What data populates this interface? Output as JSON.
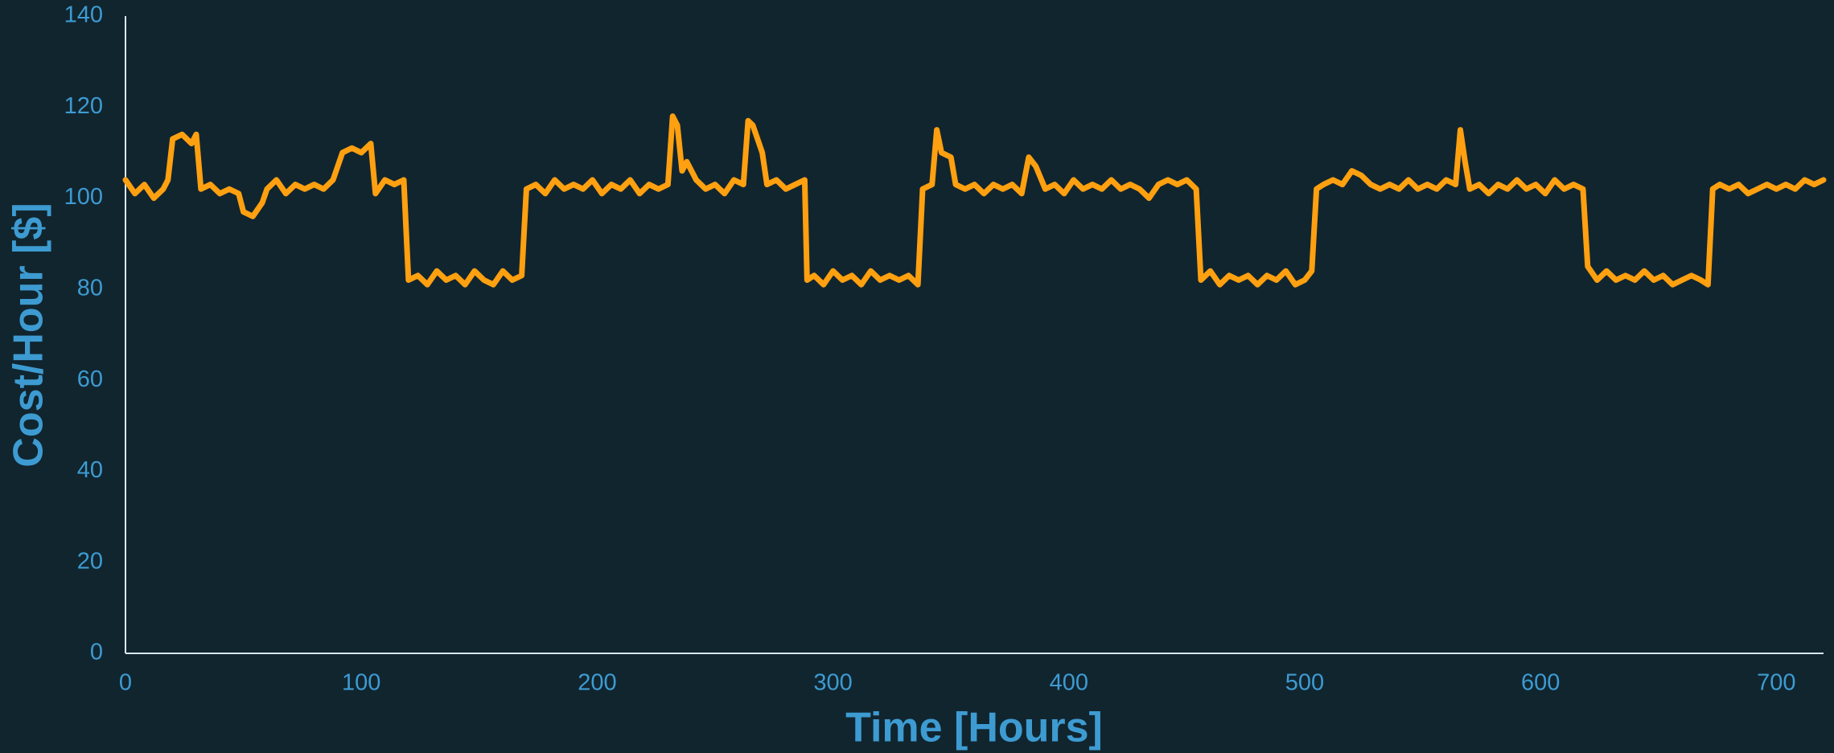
{
  "chart_data": {
    "type": "line",
    "xlabel": "Time [Hours]",
    "ylabel": "Cost/Hour [$]",
    "color": "#ffa010",
    "xlim": [
      0,
      720
    ],
    "xticks": [
      0,
      100,
      200,
      300,
      400,
      500,
      600,
      700
    ],
    "ylim": [
      0,
      140
    ],
    "yticks": [
      0,
      20,
      40,
      60,
      80,
      100,
      120,
      140
    ],
    "grid": false,
    "x": [
      0,
      4,
      8,
      12,
      16,
      18,
      20,
      24,
      28,
      30,
      32,
      36,
      40,
      44,
      48,
      50,
      54,
      58,
      60,
      64,
      68,
      72,
      76,
      80,
      84,
      88,
      92,
      96,
      100,
      104,
      106,
      110,
      114,
      118,
      120,
      124,
      128,
      132,
      136,
      140,
      144,
      148,
      152,
      156,
      160,
      164,
      168,
      170,
      174,
      178,
      182,
      186,
      190,
      194,
      198,
      202,
      206,
      210,
      214,
      218,
      222,
      226,
      230,
      232,
      234,
      236,
      238,
      242,
      246,
      250,
      254,
      258,
      262,
      264,
      266,
      270,
      272,
      276,
      280,
      284,
      288,
      289,
      292,
      296,
      300,
      304,
      308,
      312,
      316,
      320,
      324,
      328,
      332,
      336,
      338,
      342,
      344,
      346,
      350,
      352,
      356,
      360,
      364,
      368,
      372,
      376,
      380,
      383,
      386,
      390,
      394,
      398,
      402,
      406,
      410,
      414,
      418,
      422,
      426,
      430,
      434,
      438,
      442,
      446,
      450,
      454,
      456,
      460,
      464,
      468,
      472,
      476,
      480,
      484,
      488,
      492,
      496,
      500,
      503,
      505,
      508,
      512,
      516,
      520,
      524,
      528,
      532,
      536,
      540,
      544,
      548,
      552,
      556,
      560,
      564,
      566,
      568,
      570,
      574,
      578,
      582,
      586,
      590,
      594,
      598,
      602,
      606,
      610,
      614,
      618,
      620,
      624,
      628,
      632,
      636,
      640,
      644,
      648,
      652,
      656,
      660,
      664,
      668,
      671,
      673,
      676,
      680,
      684,
      688,
      692,
      696,
      700,
      704,
      708,
      712,
      716,
      720
    ],
    "values": [
      104,
      101,
      103,
      100,
      102,
      104,
      113,
      114,
      112,
      114,
      102,
      103,
      101,
      102,
      101,
      97,
      96,
      99,
      102,
      104,
      101,
      103,
      102,
      103,
      102,
      104,
      110,
      111,
      110,
      112,
      101,
      104,
      103,
      104,
      82,
      83,
      81,
      84,
      82,
      83,
      81,
      84,
      82,
      81,
      84,
      82,
      83,
      102,
      103,
      101,
      104,
      102,
      103,
      102,
      104,
      101,
      103,
      102,
      104,
      101,
      103,
      102,
      103,
      118,
      116,
      106,
      108,
      104,
      102,
      103,
      101,
      104,
      103,
      117,
      116,
      110,
      103,
      104,
      102,
      103,
      104,
      82,
      83,
      81,
      84,
      82,
      83,
      81,
      84,
      82,
      83,
      82,
      83,
      81,
      102,
      103,
      115,
      110,
      109,
      103,
      102,
      103,
      101,
      103,
      102,
      103,
      101,
      109,
      107,
      102,
      103,
      101,
      104,
      102,
      103,
      102,
      104,
      102,
      103,
      102,
      100,
      103,
      104,
      103,
      104,
      102,
      82,
      84,
      81,
      83,
      82,
      83,
      81,
      83,
      82,
      84,
      81,
      82,
      84,
      102,
      103,
      104,
      103,
      106,
      105,
      103,
      102,
      103,
      102,
      104,
      102,
      103,
      102,
      104,
      103,
      115,
      108,
      102,
      103,
      101,
      103,
      102,
      104,
      102,
      103,
      101,
      104,
      102,
      103,
      102,
      85,
      82,
      84,
      82,
      83,
      82,
      84,
      82,
      83,
      81,
      82,
      83,
      82,
      81,
      102,
      103,
      102,
      103,
      101,
      102,
      103,
      102,
      103,
      102,
      104,
      103,
      104
    ]
  }
}
